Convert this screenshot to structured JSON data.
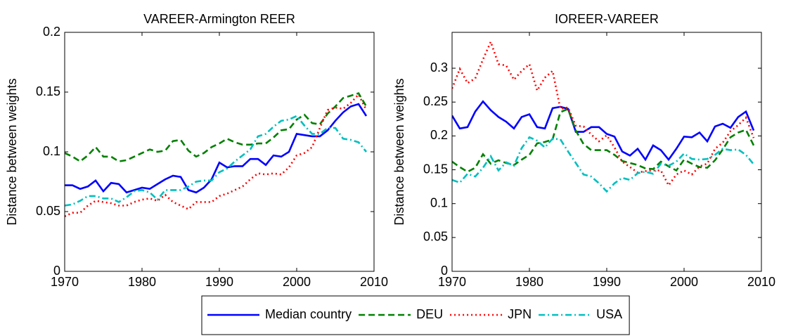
{
  "chart_data": [
    {
      "type": "line",
      "title": "VAREER-Armington REER",
      "ylabel": "Distance between weights",
      "x": [
        1970,
        1971,
        1972,
        1973,
        1974,
        1975,
        1976,
        1977,
        1978,
        1979,
        1980,
        1981,
        1982,
        1983,
        1984,
        1985,
        1986,
        1987,
        1988,
        1989,
        1990,
        1991,
        1992,
        1993,
        1994,
        1995,
        1996,
        1997,
        1998,
        1999,
        2000,
        2001,
        2002,
        2003,
        2004,
        2005,
        2006,
        2007,
        2008,
        2009
      ],
      "xlim": [
        1970,
        2010
      ],
      "xticks": [
        1970,
        1980,
        1990,
        2000,
        2010
      ],
      "ylim": [
        0,
        0.2
      ],
      "yticks": [
        0,
        0.05,
        0.1,
        0.15,
        0.2
      ],
      "grid": false,
      "legend": "bottom",
      "series": [
        {
          "name": "Median country",
          "color": "#0000ff",
          "line_style": "solid",
          "values": [
            0.072,
            0.072,
            0.069,
            0.071,
            0.076,
            0.067,
            0.074,
            0.073,
            0.066,
            0.068,
            0.07,
            0.069,
            0.073,
            0.077,
            0.08,
            0.079,
            0.068,
            0.066,
            0.07,
            0.077,
            0.091,
            0.087,
            0.088,
            0.088,
            0.094,
            0.094,
            0.089,
            0.097,
            0.096,
            0.1,
            0.115,
            0.114,
            0.113,
            0.113,
            0.118,
            0.126,
            0.133,
            0.138,
            0.14,
            0.13
          ]
        },
        {
          "name": "DEU",
          "color": "#008000",
          "line_style": "dashed",
          "values": [
            0.099,
            0.096,
            0.092,
            0.097,
            0.104,
            0.096,
            0.096,
            0.092,
            0.093,
            0.096,
            0.099,
            0.102,
            0.1,
            0.101,
            0.109,
            0.11,
            0.101,
            0.096,
            0.099,
            0.104,
            0.107,
            0.111,
            0.108,
            0.106,
            0.106,
            0.107,
            0.107,
            0.112,
            0.118,
            0.119,
            0.127,
            0.131,
            0.124,
            0.123,
            0.132,
            0.138,
            0.145,
            0.147,
            0.149,
            0.138
          ]
        },
        {
          "name": "JPN",
          "color": "#ff0000",
          "line_style": "dotted",
          "values": [
            0.046,
            0.049,
            0.049,
            0.055,
            0.059,
            0.058,
            0.057,
            0.055,
            0.055,
            0.058,
            0.06,
            0.061,
            0.059,
            0.064,
            0.058,
            0.055,
            0.052,
            0.058,
            0.058,
            0.058,
            0.063,
            0.065,
            0.068,
            0.071,
            0.077,
            0.082,
            0.081,
            0.082,
            0.081,
            0.087,
            0.097,
            0.099,
            0.104,
            0.12,
            0.135,
            0.137,
            0.136,
            0.141,
            0.148,
            0.135
          ]
        },
        {
          "name": "USA",
          "color": "#00bfbf",
          "line_style": "dashdot",
          "values": [
            0.055,
            0.056,
            0.059,
            0.063,
            0.063,
            0.061,
            0.061,
            0.058,
            0.062,
            0.067,
            0.068,
            0.066,
            0.06,
            0.068,
            0.068,
            0.068,
            0.071,
            0.075,
            0.076,
            0.076,
            0.083,
            0.086,
            0.092,
            0.097,
            0.102,
            0.113,
            0.115,
            0.121,
            0.126,
            0.127,
            0.13,
            0.122,
            0.115,
            0.115,
            0.12,
            0.12,
            0.111,
            0.11,
            0.108,
            0.1
          ]
        }
      ]
    },
    {
      "type": "line",
      "title": "IOREER-VAREER",
      "ylabel": "Distance between weights",
      "x": [
        1970,
        1971,
        1972,
        1973,
        1974,
        1975,
        1976,
        1977,
        1978,
        1979,
        1980,
        1981,
        1982,
        1983,
        1984,
        1985,
        1986,
        1987,
        1988,
        1989,
        1990,
        1991,
        1992,
        1993,
        1994,
        1995,
        1996,
        1997,
        1998,
        1999,
        2000,
        2001,
        2002,
        2003,
        2004,
        2005,
        2006,
        2007,
        2008,
        2009
      ],
      "xlim": [
        1970,
        2010
      ],
      "xticks": [
        1970,
        1980,
        1990,
        2000,
        2010
      ],
      "ylim": [
        0,
        0.353
      ],
      "yticks": [
        0,
        0.05,
        0.1,
        0.15,
        0.2,
        0.25,
        0.3
      ],
      "grid": false,
      "series": [
        {
          "color": "#0000ff",
          "line_style": "solid",
          "values": [
            0.23,
            0.211,
            0.213,
            0.236,
            0.251,
            0.238,
            0.228,
            0.221,
            0.211,
            0.228,
            0.232,
            0.213,
            0.211,
            0.241,
            0.243,
            0.24,
            0.206,
            0.206,
            0.213,
            0.213,
            0.203,
            0.199,
            0.177,
            0.171,
            0.181,
            0.165,
            0.186,
            0.179,
            0.165,
            0.181,
            0.199,
            0.198,
            0.205,
            0.192,
            0.214,
            0.218,
            0.212,
            0.228,
            0.236,
            0.208
          ]
        },
        {
          "color": "#008000",
          "line_style": "dashed",
          "values": [
            0.162,
            0.154,
            0.147,
            0.153,
            0.173,
            0.159,
            0.164,
            0.16,
            0.157,
            0.165,
            0.172,
            0.189,
            0.191,
            0.195,
            0.235,
            0.24,
            0.208,
            0.188,
            0.179,
            0.179,
            0.179,
            0.172,
            0.163,
            0.16,
            0.157,
            0.152,
            0.151,
            0.162,
            0.155,
            0.149,
            0.165,
            0.159,
            0.154,
            0.153,
            0.164,
            0.18,
            0.198,
            0.205,
            0.209,
            0.186
          ]
        },
        {
          "color": "#ff0000",
          "line_style": "dotted",
          "values": [
            0.27,
            0.299,
            0.278,
            0.285,
            0.313,
            0.339,
            0.306,
            0.304,
            0.283,
            0.296,
            0.306,
            0.267,
            0.286,
            0.296,
            0.24,
            0.242,
            0.215,
            0.214,
            0.202,
            0.192,
            0.201,
            0.183,
            0.162,
            0.154,
            0.146,
            0.148,
            0.149,
            0.149,
            0.127,
            0.143,
            0.149,
            0.143,
            0.155,
            0.159,
            0.181,
            0.19,
            0.207,
            0.216,
            0.227,
            0.197
          ]
        },
        {
          "color": "#00bfbf",
          "line_style": "dashdot",
          "values": [
            0.135,
            0.131,
            0.144,
            0.14,
            0.153,
            0.17,
            0.149,
            0.161,
            0.156,
            0.182,
            0.198,
            0.193,
            0.183,
            0.196,
            0.195,
            0.177,
            0.16,
            0.143,
            0.14,
            0.13,
            0.118,
            0.13,
            0.138,
            0.135,
            0.145,
            0.147,
            0.144,
            0.159,
            0.156,
            0.162,
            0.174,
            0.166,
            0.165,
            0.166,
            0.172,
            0.181,
            0.179,
            0.18,
            0.172,
            0.158
          ]
        }
      ]
    }
  ]
}
